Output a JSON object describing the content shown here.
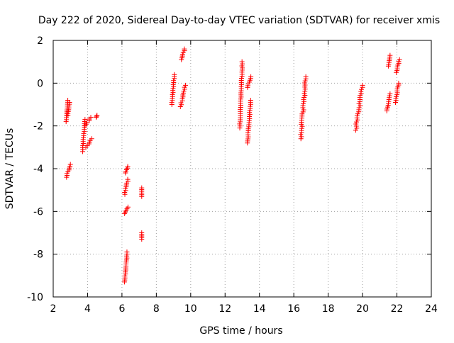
{
  "chart_data": {
    "type": "scatter",
    "title": "Day 222 of 2020, Sidereal Day-to-day VTEC variation (SDTVAR) for receiver xmis",
    "xlabel": "GPS time / hours",
    "ylabel": "SDTVAR / TECUs",
    "xlim": [
      2,
      24
    ],
    "ylim": [
      -10,
      2
    ],
    "xticks": [
      "2",
      "4",
      "6",
      "8",
      "10",
      "12",
      "14",
      "16",
      "18",
      "20",
      "22",
      "24"
    ],
    "yticks": [
      "-10",
      "-8",
      "-6",
      "-4",
      "-2",
      "0",
      "2"
    ],
    "grid": true,
    "marker": "+",
    "color": "#ff0000",
    "segments": [
      {
        "x0": 2.75,
        "x1": 2.85,
        "y0": -1.8,
        "y1": -0.8
      },
      {
        "x0": 2.85,
        "x1": 2.95,
        "y0": -1.5,
        "y1": -0.9
      },
      {
        "x0": 2.75,
        "x1": 3.0,
        "y0": -4.4,
        "y1": -3.8
      },
      {
        "x0": 3.7,
        "x1": 3.85,
        "y0": -3.2,
        "y1": -1.7
      },
      {
        "x0": 3.85,
        "x1": 4.2,
        "y0": -2.0,
        "y1": -1.6
      },
      {
        "x0": 3.9,
        "x1": 4.25,
        "y0": -3.0,
        "y1": -2.6
      },
      {
        "x0": 4.5,
        "x1": 4.55,
        "y0": -1.6,
        "y1": -1.5
      },
      {
        "x0": 6.15,
        "x1": 6.3,
        "y0": -9.3,
        "y1": -7.9
      },
      {
        "x0": 6.15,
        "x1": 6.35,
        "y0": -6.1,
        "y1": -5.8
      },
      {
        "x0": 6.15,
        "x1": 6.35,
        "y0": -5.2,
        "y1": -4.5
      },
      {
        "x0": 6.2,
        "x1": 6.35,
        "y0": -4.2,
        "y1": -3.9
      },
      {
        "x0": 7.15,
        "x1": 7.15,
        "y0": -7.3,
        "y1": -7.0
      },
      {
        "x0": 7.15,
        "x1": 7.15,
        "y0": -5.3,
        "y1": -4.9
      },
      {
        "x0": 8.9,
        "x1": 9.05,
        "y0": -1.0,
        "y1": 0.4
      },
      {
        "x0": 9.4,
        "x1": 9.7,
        "y0": -1.1,
        "y1": -0.1
      },
      {
        "x0": 9.45,
        "x1": 9.65,
        "y0": 1.1,
        "y1": 1.6
      },
      {
        "x0": 12.85,
        "x1": 13.0,
        "y0": -2.1,
        "y1": 1.0
      },
      {
        "x0": 13.3,
        "x1": 13.5,
        "y0": -2.8,
        "y1": -0.8
      },
      {
        "x0": 13.3,
        "x1": 13.5,
        "y0": -0.2,
        "y1": 0.3
      },
      {
        "x0": 16.4,
        "x1": 16.7,
        "y0": -2.6,
        "y1": 0.3
      },
      {
        "x0": 19.6,
        "x1": 20.0,
        "y0": -2.2,
        "y1": -0.1
      },
      {
        "x0": 21.4,
        "x1": 21.6,
        "y0": -1.3,
        "y1": -0.5
      },
      {
        "x0": 21.5,
        "x1": 21.6,
        "y0": 0.8,
        "y1": 1.3
      },
      {
        "x0": 21.9,
        "x1": 22.1,
        "y0": -0.9,
        "y1": 0.0
      },
      {
        "x0": 21.95,
        "x1": 22.15,
        "y0": 0.5,
        "y1": 1.1
      }
    ]
  }
}
